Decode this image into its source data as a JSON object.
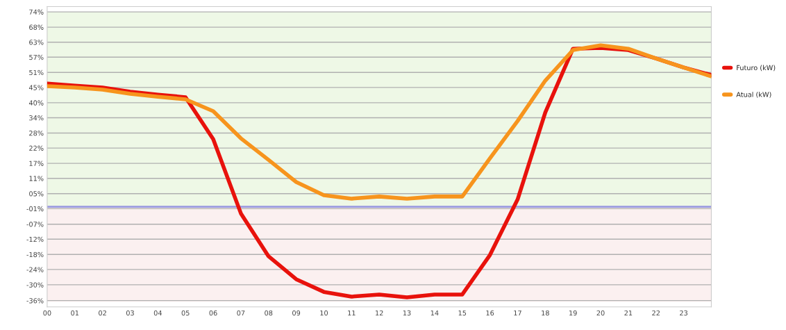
{
  "chart_data": {
    "type": "line",
    "x": [
      0,
      1,
      2,
      3,
      4,
      5,
      6,
      7,
      8,
      9,
      10,
      11,
      12,
      13,
      14,
      15,
      16,
      17,
      18,
      19,
      20,
      21,
      22,
      23,
      24
    ],
    "series": [
      {
        "name": "Futuro (kW)",
        "color": "#e8120c",
        "values": [
          46.8,
          46.0,
          45.3,
          43.7,
          42.6,
          41.6,
          25.7,
          -2.5,
          -18.8,
          -27.5,
          -32.3,
          -34.1,
          -33.3,
          -34.4,
          -33.3,
          -33.3,
          -18.3,
          2.8,
          35.8,
          60.0,
          60.3,
          59.5,
          56.3,
          52.9,
          50.0
        ]
      },
      {
        "name": "Atual (kW)",
        "color": "#f7941d",
        "values": [
          45.8,
          45.3,
          44.5,
          42.9,
          41.8,
          40.8,
          36.3,
          26.0,
          17.8,
          9.4,
          4.4,
          3.1,
          3.9,
          3.1,
          3.9,
          3.9,
          18.4,
          32.6,
          47.9,
          59.5,
          61.3,
          60.0,
          56.3,
          52.9,
          49.5
        ]
      }
    ],
    "xlim": [
      0,
      24
    ],
    "xticks": [
      {
        "value": 0,
        "label": "00"
      },
      {
        "value": 1,
        "label": "01"
      },
      {
        "value": 2,
        "label": "02"
      },
      {
        "value": 3,
        "label": "03"
      },
      {
        "value": 4,
        "label": "04"
      },
      {
        "value": 5,
        "label": "05"
      },
      {
        "value": 6,
        "label": "06"
      },
      {
        "value": 7,
        "label": "07"
      },
      {
        "value": 8,
        "label": "08"
      },
      {
        "value": 9,
        "label": "09"
      },
      {
        "value": 10,
        "label": "10"
      },
      {
        "value": 11,
        "label": "11"
      },
      {
        "value": 12,
        "label": "12"
      },
      {
        "value": 13,
        "label": "13"
      },
      {
        "value": 14,
        "label": "14"
      },
      {
        "value": 15,
        "label": "15"
      },
      {
        "value": 16,
        "label": "16"
      },
      {
        "value": 17,
        "label": "17"
      },
      {
        "value": 18,
        "label": "18"
      },
      {
        "value": 19,
        "label": "19"
      },
      {
        "value": 20,
        "label": "20"
      },
      {
        "value": 21,
        "label": "21"
      },
      {
        "value": 22,
        "label": "22"
      },
      {
        "value": 23,
        "label": "23"
      }
    ],
    "ylim": [
      -38,
      76
    ],
    "yticks": [
      {
        "value": 74,
        "label": "74%"
      },
      {
        "value": 68.2,
        "label": "68%"
      },
      {
        "value": 62.5,
        "label": "63%"
      },
      {
        "value": 56.8,
        "label": "57%"
      },
      {
        "value": 51.0,
        "label": "51%"
      },
      {
        "value": 45.3,
        "label": "45%"
      },
      {
        "value": 39.5,
        "label": "40%"
      },
      {
        "value": 33.8,
        "label": "34%"
      },
      {
        "value": 28.0,
        "label": "28%"
      },
      {
        "value": 22.3,
        "label": "22%"
      },
      {
        "value": 16.5,
        "label": "17%"
      },
      {
        "value": 10.8,
        "label": "11%"
      },
      {
        "value": 5.0,
        "label": "05%"
      },
      {
        "value": -0.7,
        "label": "-01%"
      },
      {
        "value": -6.6,
        "label": "-07%"
      },
      {
        "value": -12.3,
        "label": "-12%"
      },
      {
        "value": -18.1,
        "label": "-18%"
      },
      {
        "value": -23.8,
        "label": "-24%"
      },
      {
        "value": -29.6,
        "label": "-30%"
      },
      {
        "value": -35.6,
        "label": "-36%"
      }
    ],
    "ref_lines": [
      {
        "axis": "y",
        "value": 0,
        "color": "#9a9ae0"
      }
    ],
    "bands": [
      {
        "axis": "y",
        "from": 0,
        "to": 74,
        "color": "#eef8e6"
      },
      {
        "axis": "y",
        "from": -36,
        "to": 0,
        "color": "#fbf0f0"
      }
    ],
    "grid": "y",
    "legend": "right",
    "marker": "none",
    "line_style": "solid"
  }
}
